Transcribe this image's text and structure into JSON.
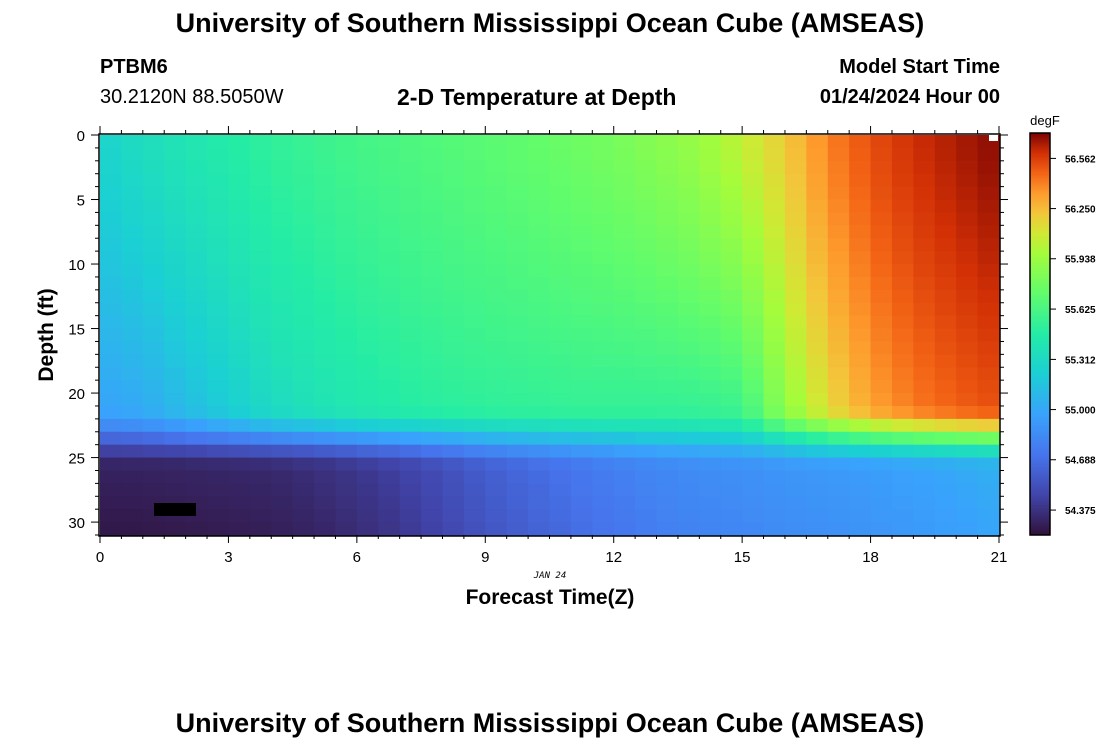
{
  "header": {
    "title": "University of Southern Mississippi Ocean Cube (AMSEAS)",
    "station": "PTBM6",
    "coordinates": "30.2120N  88.5050W",
    "subtitle": "2-D Temperature at Depth",
    "model_start_label": "Model Start Time",
    "model_start_value": "01/24/2024 Hour 00"
  },
  "footer": {
    "title": "University of Southern Mississippi Ocean Cube (AMSEAS)"
  },
  "chart_data": {
    "type": "heatmap",
    "title": "2-D Temperature at Depth",
    "xlabel": "Forecast Time(Z)",
    "ylabel": "Depth (ft)",
    "x_date_label": "JAN 24",
    "xlim": [
      0,
      21
    ],
    "ylim": [
      0,
      31
    ],
    "x_ticks": [
      0,
      3,
      6,
      9,
      12,
      15,
      18,
      21
    ],
    "y_ticks": [
      0,
      5,
      10,
      15,
      20,
      25,
      30
    ],
    "colorbar": {
      "unit": "degF",
      "range": [
        54.22,
        56.72
      ],
      "ticks": [
        "56.562",
        "56.250",
        "55.938",
        "55.625",
        "55.312",
        "55.000",
        "54.688",
        "54.375"
      ],
      "tick_values": [
        56.562,
        56.25,
        55.938,
        55.625,
        55.312,
        55.0,
        54.688,
        54.375
      ]
    },
    "time_profile": {
      "hours": [
        0,
        1,
        2,
        3,
        4,
        5,
        6,
        7,
        8,
        9,
        10,
        11,
        12,
        13,
        14,
        15,
        16,
        17,
        18,
        19,
        20,
        21
      ],
      "surface_degF": [
        55.25,
        55.34,
        55.4,
        55.46,
        55.52,
        55.56,
        55.6,
        55.63,
        55.66,
        55.69,
        55.72,
        55.76,
        55.8,
        55.86,
        55.93,
        56.05,
        56.2,
        56.4,
        56.52,
        56.6,
        56.65,
        56.7
      ],
      "mixed_layer_degF": [
        54.98,
        55.02,
        55.12,
        55.22,
        55.32,
        55.38,
        55.43,
        55.47,
        55.5,
        55.52,
        55.53,
        55.54,
        55.54,
        55.54,
        55.55,
        55.58,
        55.9,
        56.15,
        56.32,
        56.42,
        56.48,
        56.52
      ],
      "bottom_degF": [
        54.3,
        54.3,
        54.31,
        54.32,
        54.33,
        54.36,
        54.4,
        54.45,
        54.52,
        54.6,
        54.66,
        54.72,
        54.77,
        54.82,
        54.85,
        54.87,
        54.9,
        54.92,
        54.94,
        54.97,
        55.0,
        55.04
      ]
    },
    "mixed_layer_depth_ft": 21,
    "thermocline_bottom_ft": 26
  }
}
